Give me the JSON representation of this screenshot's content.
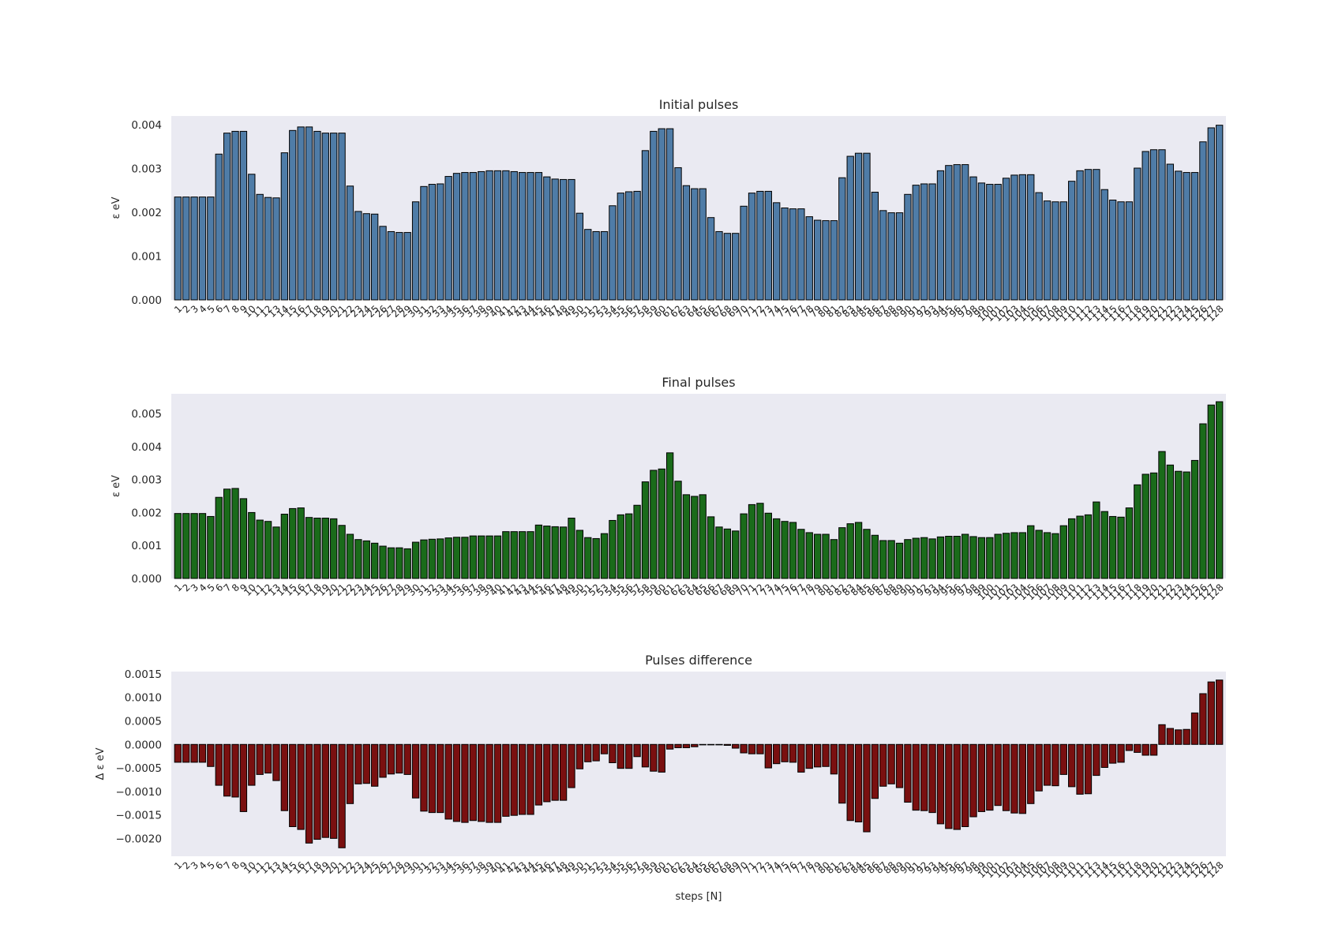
{
  "figure": {
    "xlabel": "steps [N]"
  },
  "colors": {
    "plot_bg": "#eaeaf2",
    "bar_edge": "#000000",
    "text": "#262626"
  },
  "chart_data": [
    {
      "type": "bar",
      "title": "Initial pulses",
      "ylabel": "ε eV",
      "xlabel": "",
      "ylim": [
        0,
        0.0042
      ],
      "yticks": [
        0,
        0.001,
        0.002,
        0.003,
        0.004
      ],
      "ytick_labels": [
        "0.000",
        "0.001",
        "0.002",
        "0.003",
        "0.004"
      ],
      "color": "#4f7ca7",
      "grid": false,
      "categories": [
        "1",
        "2",
        "3",
        "4",
        "5",
        "6",
        "7",
        "8",
        "9",
        "10",
        "11",
        "12",
        "13",
        "14",
        "15",
        "16",
        "17",
        "18",
        "19",
        "20",
        "21",
        "22",
        "23",
        "24",
        "25",
        "26",
        "27",
        "28",
        "29",
        "30",
        "31",
        "32",
        "33",
        "34",
        "35",
        "36",
        "37",
        "38",
        "39",
        "40",
        "41",
        "42",
        "43",
        "44",
        "45",
        "46",
        "47",
        "48",
        "49",
        "50",
        "51",
        "52",
        "53",
        "54",
        "55",
        "56",
        "57",
        "58",
        "59",
        "60",
        "61",
        "62",
        "63",
        "64",
        "65",
        "66",
        "67",
        "68",
        "69",
        "70",
        "71",
        "72",
        "73",
        "74",
        "75",
        "76",
        "77",
        "78",
        "79",
        "80",
        "81",
        "82",
        "83",
        "84",
        "85",
        "86",
        "87",
        "88",
        "89",
        "90",
        "91",
        "92",
        "93",
        "94",
        "95",
        "96",
        "97",
        "98",
        "99",
        "100",
        "101",
        "102",
        "103",
        "104",
        "105",
        "106",
        "107",
        "108",
        "109",
        "110",
        "111",
        "112",
        "113",
        "114",
        "115",
        "116",
        "117",
        "118",
        "119",
        "120",
        "121",
        "122",
        "123",
        "124",
        "125",
        "126",
        "127",
        "128"
      ],
      "values": [
        0.00235,
        0.00235,
        0.00235,
        0.00235,
        0.00235,
        0.00333,
        0.00381,
        0.00385,
        0.00385,
        0.00287,
        0.00241,
        0.00234,
        0.00233,
        0.00336,
        0.00387,
        0.00395,
        0.00395,
        0.00385,
        0.00381,
        0.00381,
        0.00381,
        0.0026,
        0.00202,
        0.00197,
        0.00196,
        0.00168,
        0.00156,
        0.00154,
        0.00154,
        0.00224,
        0.00259,
        0.00264,
        0.00265,
        0.00282,
        0.00289,
        0.00291,
        0.00291,
        0.00293,
        0.00295,
        0.00295,
        0.00295,
        0.00293,
        0.00291,
        0.00291,
        0.00291,
        0.00281,
        0.00276,
        0.00275,
        0.00275,
        0.00198,
        0.00161,
        0.00156,
        0.00156,
        0.00215,
        0.00244,
        0.00247,
        0.00248,
        0.00341,
        0.00385,
        0.00391,
        0.00391,
        0.00302,
        0.00261,
        0.00254,
        0.00254,
        0.00188,
        0.00156,
        0.00152,
        0.00152,
        0.00214,
        0.00244,
        0.00248,
        0.00248,
        0.00222,
        0.0021,
        0.00208,
        0.00208,
        0.0019,
        0.00182,
        0.00181,
        0.00181,
        0.00279,
        0.00328,
        0.00335,
        0.00335,
        0.00246,
        0.00204,
        0.00199,
        0.00199,
        0.00241,
        0.00262,
        0.00265,
        0.00265,
        0.00295,
        0.00307,
        0.00309,
        0.00309,
        0.00281,
        0.00267,
        0.00264,
        0.00264,
        0.00278,
        0.00285,
        0.00286,
        0.00286,
        0.00245,
        0.00226,
        0.00224,
        0.00224,
        0.00271,
        0.00295,
        0.00298,
        0.00298,
        0.00252,
        0.00228,
        0.00224,
        0.00224,
        0.00301,
        0.00339,
        0.00343,
        0.00343,
        0.0031,
        0.00294,
        0.00291,
        0.00291,
        0.00361,
        0.00393,
        0.00399
      ]
    },
    {
      "type": "bar",
      "title": "Final pulses",
      "ylabel": "ε eV",
      "xlabel": "",
      "ylim": [
        0,
        0.0056
      ],
      "yticks": [
        0,
        0.001,
        0.002,
        0.003,
        0.004,
        0.005
      ],
      "ytick_labels": [
        "0.000",
        "0.001",
        "0.002",
        "0.003",
        "0.004",
        "0.005"
      ],
      "color": "#1a6b1a",
      "grid": false,
      "categories": [
        "1",
        "2",
        "3",
        "4",
        "5",
        "6",
        "7",
        "8",
        "9",
        "10",
        "11",
        "12",
        "13",
        "14",
        "15",
        "16",
        "17",
        "18",
        "19",
        "20",
        "21",
        "22",
        "23",
        "24",
        "25",
        "26",
        "27",
        "28",
        "29",
        "30",
        "31",
        "32",
        "33",
        "34",
        "35",
        "36",
        "37",
        "38",
        "39",
        "40",
        "41",
        "42",
        "43",
        "44",
        "45",
        "46",
        "47",
        "48",
        "49",
        "50",
        "51",
        "52",
        "53",
        "54",
        "55",
        "56",
        "57",
        "58",
        "59",
        "60",
        "61",
        "62",
        "63",
        "64",
        "65",
        "66",
        "67",
        "68",
        "69",
        "70",
        "71",
        "72",
        "73",
        "74",
        "75",
        "76",
        "77",
        "78",
        "79",
        "80",
        "81",
        "82",
        "83",
        "84",
        "85",
        "86",
        "87",
        "88",
        "89",
        "90",
        "91",
        "92",
        "93",
        "94",
        "95",
        "96",
        "97",
        "98",
        "99",
        "100",
        "101",
        "102",
        "103",
        "104",
        "105",
        "106",
        "107",
        "108",
        "109",
        "110",
        "111",
        "112",
        "113",
        "114",
        "115",
        "116",
        "117",
        "118",
        "119",
        "120",
        "121",
        "122",
        "123",
        "124",
        "125",
        "126",
        "127",
        "128"
      ],
      "values": [
        0.00197,
        0.00197,
        0.00197,
        0.00197,
        0.00188,
        0.00246,
        0.00271,
        0.00273,
        0.00242,
        0.002,
        0.00177,
        0.00173,
        0.00156,
        0.00195,
        0.00212,
        0.00214,
        0.00185,
        0.00183,
        0.00183,
        0.00181,
        0.00161,
        0.00134,
        0.00118,
        0.00114,
        0.00107,
        0.00098,
        0.00093,
        0.00093,
        0.0009,
        0.0011,
        0.00117,
        0.00119,
        0.0012,
        0.00123,
        0.00125,
        0.00125,
        0.00129,
        0.00129,
        0.00129,
        0.00129,
        0.00142,
        0.00142,
        0.00142,
        0.00142,
        0.00162,
        0.00159,
        0.00157,
        0.00156,
        0.00183,
        0.00146,
        0.00124,
        0.00121,
        0.00136,
        0.00176,
        0.00193,
        0.00196,
        0.00222,
        0.00293,
        0.00328,
        0.00332,
        0.00381,
        0.00295,
        0.00254,
        0.00249,
        0.00254,
        0.00187,
        0.00156,
        0.0015,
        0.00144,
        0.00196,
        0.00224,
        0.00228,
        0.00198,
        0.00181,
        0.00173,
        0.0017,
        0.00149,
        0.00139,
        0.00134,
        0.00134,
        0.00118,
        0.00154,
        0.00166,
        0.0017,
        0.00149,
        0.00131,
        0.00115,
        0.00115,
        0.00107,
        0.00118,
        0.00122,
        0.00124,
        0.0012,
        0.00126,
        0.00128,
        0.00128,
        0.00134,
        0.00127,
        0.00124,
        0.00124,
        0.00134,
        0.00137,
        0.00139,
        0.00139,
        0.0016,
        0.00146,
        0.00139,
        0.00136,
        0.0016,
        0.00181,
        0.00189,
        0.00193,
        0.00232,
        0.00203,
        0.00188,
        0.00186,
        0.00214,
        0.00284,
        0.00316,
        0.0032,
        0.00385,
        0.00344,
        0.00325,
        0.00323,
        0.00358,
        0.00469,
        0.00526,
        0.00536
      ]
    },
    {
      "type": "bar",
      "title": "Pulses difference",
      "ylabel": "Δ ε eV",
      "xlabel": "steps [N]",
      "ylim": [
        -0.00238,
        0.00155
      ],
      "yticks": [
        -0.002,
        -0.0015,
        -0.001,
        -0.0005,
        0,
        0.0005,
        0.001,
        0.0015
      ],
      "ytick_labels": [
        "−0.0020",
        "−0.0015",
        "−0.0010",
        "−0.0005",
        "0.0000",
        "0.0005",
        "0.0010",
        "0.0015"
      ],
      "color": "#7a1010",
      "grid": false,
      "categories": [
        "1",
        "2",
        "3",
        "4",
        "5",
        "6",
        "7",
        "8",
        "9",
        "10",
        "11",
        "12",
        "13",
        "14",
        "15",
        "16",
        "17",
        "18",
        "19",
        "20",
        "21",
        "22",
        "23",
        "24",
        "25",
        "26",
        "27",
        "28",
        "29",
        "30",
        "31",
        "32",
        "33",
        "34",
        "35",
        "36",
        "37",
        "38",
        "39",
        "40",
        "41",
        "42",
        "43",
        "44",
        "45",
        "46",
        "47",
        "48",
        "49",
        "50",
        "51",
        "52",
        "53",
        "54",
        "55",
        "56",
        "57",
        "58",
        "59",
        "60",
        "61",
        "62",
        "63",
        "64",
        "65",
        "66",
        "67",
        "68",
        "69",
        "70",
        "71",
        "72",
        "73",
        "74",
        "75",
        "76",
        "77",
        "78",
        "79",
        "80",
        "81",
        "82",
        "83",
        "84",
        "85",
        "86",
        "87",
        "88",
        "89",
        "90",
        "91",
        "92",
        "93",
        "94",
        "95",
        "96",
        "97",
        "98",
        "99",
        "100",
        "101",
        "102",
        "103",
        "104",
        "105",
        "106",
        "107",
        "108",
        "109",
        "110",
        "111",
        "112",
        "113",
        "114",
        "115",
        "116",
        "117",
        "118",
        "119",
        "120",
        "121",
        "122",
        "123",
        "124",
        "125",
        "126",
        "127",
        "128"
      ],
      "values": [
        -0.00038,
        -0.00038,
        -0.00038,
        -0.00038,
        -0.00047,
        -0.00087,
        -0.0011,
        -0.00112,
        -0.00143,
        -0.00087,
        -0.00064,
        -0.00061,
        -0.00077,
        -0.00141,
        -0.00175,
        -0.00181,
        -0.0021,
        -0.00202,
        -0.00198,
        -0.002,
        -0.0022,
        -0.00126,
        -0.00084,
        -0.00083,
        -0.00089,
        -0.0007,
        -0.00063,
        -0.00061,
        -0.00064,
        -0.00114,
        -0.00142,
        -0.00145,
        -0.00145,
        -0.00159,
        -0.00164,
        -0.00166,
        -0.00162,
        -0.00164,
        -0.00166,
        -0.00166,
        -0.00153,
        -0.00151,
        -0.00149,
        -0.00149,
        -0.00129,
        -0.00122,
        -0.00119,
        -0.00119,
        -0.00092,
        -0.00052,
        -0.00037,
        -0.00035,
        -0.0002,
        -0.00039,
        -0.00051,
        -0.00051,
        -0.00026,
        -0.00048,
        -0.00057,
        -0.00059,
        -0.0001,
        -7e-05,
        -7e-05,
        -5e-05,
        -1e-05,
        -1e-05,
        -1e-05,
        -2e-05,
        -8e-05,
        -0.00018,
        -0.0002,
        -0.0002,
        -0.0005,
        -0.00041,
        -0.00037,
        -0.00038,
        -0.00059,
        -0.00051,
        -0.00048,
        -0.00047,
        -0.00063,
        -0.00125,
        -0.00162,
        -0.00165,
        -0.00186,
        -0.00115,
        -0.00089,
        -0.00084,
        -0.00092,
        -0.00123,
        -0.0014,
        -0.00141,
        -0.00145,
        -0.00169,
        -0.00179,
        -0.00181,
        -0.00175,
        -0.00154,
        -0.00143,
        -0.0014,
        -0.0013,
        -0.00141,
        -0.00146,
        -0.00147,
        -0.00126,
        -0.00099,
        -0.00087,
        -0.00088,
        -0.00064,
        -0.0009,
        -0.00106,
        -0.00105,
        -0.00066,
        -0.00049,
        -0.0004,
        -0.00038,
        -0.00013,
        -0.00017,
        -0.00023,
        -0.00023,
        0.00042,
        0.00034,
        0.00031,
        0.00032,
        0.00067,
        0.00108,
        0.00133,
        0.00137
      ]
    }
  ]
}
